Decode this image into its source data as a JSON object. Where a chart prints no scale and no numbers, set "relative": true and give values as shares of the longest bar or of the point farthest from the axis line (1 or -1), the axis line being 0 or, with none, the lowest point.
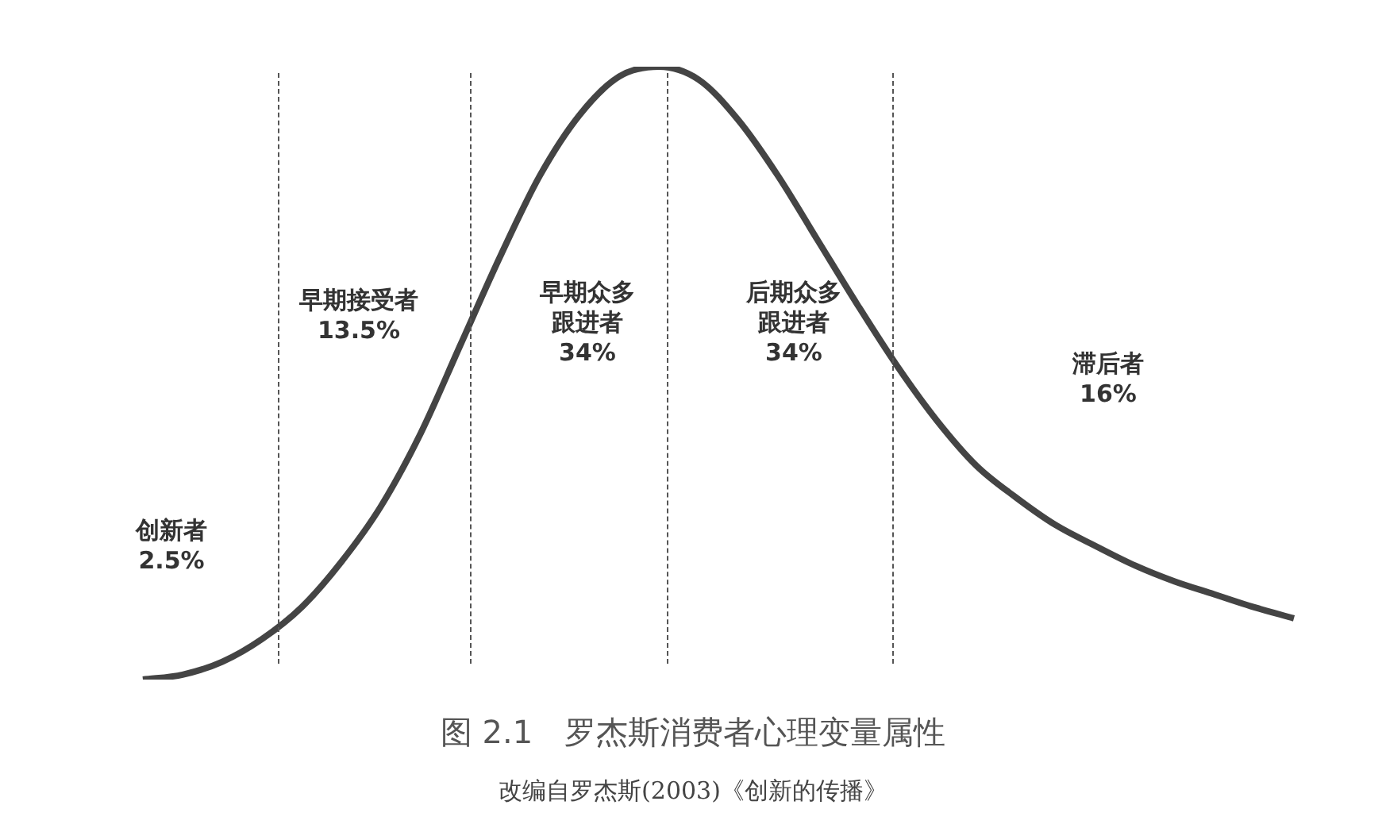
{
  "chart_data": {
    "type": "line",
    "relative": true,
    "title": "图 2.1　罗杰斯消费者心理变量属性",
    "subtitle": "改编自罗杰斯(2003)《创新的传播》",
    "categories": [
      null,
      null,
      null,
      null,
      null,
      null,
      null,
      null,
      null,
      null,
      null,
      null,
      null,
      null,
      null,
      null,
      null,
      null,
      null,
      null,
      null,
      null,
      null,
      null,
      null,
      null,
      null,
      null,
      null,
      null
    ],
    "series": [
      {
        "color": "#444444",
        "values": [
          0,
          0.008,
          0.029,
          0.066,
          0.118,
          0.192,
          0.283,
          0.402,
          0.546,
          0.69,
          0.822,
          0.921,
          0.984,
          1.0,
          0.979,
          0.913,
          0.822,
          0.717,
          0.612,
          0.512,
          0.423,
          0.349,
          0.297,
          0.252,
          0.218,
          0.186,
          0.16,
          0.139,
          0.118,
          0.1
        ]
      }
    ],
    "annotations": [
      "创新者\n2.5%",
      "早期接受者\n13.5%",
      "早期众多跟进者\n34%",
      "后期众多跟进者\n34%",
      "滞后者\n16%"
    ],
    "legend": false,
    "marker": "none",
    "line_style": "solid"
  }
}
